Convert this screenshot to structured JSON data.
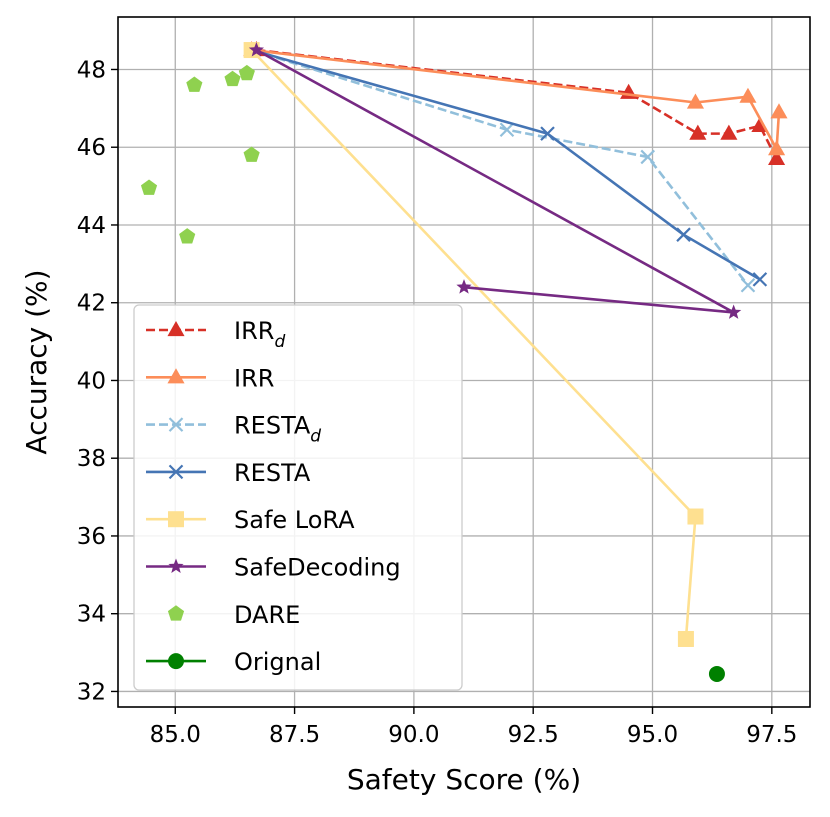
{
  "chart_data": {
    "type": "line",
    "title": "",
    "xlabel": "Safety Score (%)",
    "ylabel": "Accuracy (%)",
    "xlim": [
      83.8,
      98.3
    ],
    "ylim": [
      31.6,
      49.35
    ],
    "xticks": [
      85.0,
      87.5,
      90.0,
      92.5,
      95.0,
      97.5
    ],
    "xtick_labels": [
      "85.0",
      "87.5",
      "90.0",
      "92.5",
      "95.0",
      "97.5"
    ],
    "yticks": [
      32,
      34,
      36,
      38,
      40,
      42,
      44,
      46,
      48
    ],
    "ytick_labels": [
      "32",
      "34",
      "36",
      "38",
      "40",
      "42",
      "44",
      "46",
      "48"
    ],
    "grid": true,
    "legend_position": "lower-left",
    "series": [
      {
        "name": "IRR",
        "name_sub": "d",
        "color": "#d73027",
        "linestyle": "dashed",
        "marker": "triangle",
        "points": [
          [
            86.7,
            48.5
          ],
          [
            94.5,
            47.4
          ],
          [
            95.95,
            46.35
          ],
          [
            96.6,
            46.35
          ],
          [
            97.25,
            46.55
          ],
          [
            97.6,
            45.7
          ]
        ]
      },
      {
        "name": "IRR",
        "name_sub": "",
        "color": "#fc8d59",
        "linestyle": "solid",
        "marker": "triangle",
        "points": [
          [
            86.6,
            48.5
          ],
          [
            95.9,
            47.15
          ],
          [
            97.0,
            47.3
          ],
          [
            97.6,
            45.95
          ],
          [
            97.65,
            46.9
          ]
        ]
      },
      {
        "name": "RESTA",
        "name_sub": "d",
        "color": "#91bfdb",
        "linestyle": "dashed",
        "marker": "x",
        "points": [
          [
            86.6,
            48.5
          ],
          [
            91.95,
            46.45
          ],
          [
            94.9,
            45.75
          ],
          [
            97.0,
            42.45
          ]
        ]
      },
      {
        "name": "RESTA",
        "name_sub": "",
        "color": "#4575b4",
        "linestyle": "solid",
        "marker": "x",
        "points": [
          [
            86.6,
            48.5
          ],
          [
            92.8,
            46.35
          ],
          [
            95.65,
            43.75
          ],
          [
            97.25,
            42.6
          ]
        ]
      },
      {
        "name": "Safe LoRA",
        "name_sub": "",
        "color": "#fee090",
        "linestyle": "solid",
        "marker": "square",
        "points": [
          [
            86.6,
            48.5
          ],
          [
            95.9,
            36.5
          ],
          [
            95.7,
            33.35
          ]
        ]
      },
      {
        "name": "SafeDecoding",
        "name_sub": "",
        "color": "#762a83",
        "linestyle": "solid",
        "marker": "star",
        "points": [
          [
            86.7,
            48.5
          ],
          [
            96.7,
            41.75
          ],
          [
            91.05,
            42.4
          ]
        ]
      },
      {
        "name": "DARE",
        "name_sub": "",
        "color": "#8fd14f",
        "linestyle": "none",
        "marker": "pentagon",
        "points": [
          [
            86.5,
            47.9
          ],
          [
            86.2,
            47.75
          ],
          [
            85.4,
            47.6
          ],
          [
            86.6,
            45.8
          ],
          [
            84.45,
            44.95
          ],
          [
            85.25,
            43.7
          ]
        ]
      },
      {
        "name": "Orignal",
        "name_sub": "",
        "color": "#008000",
        "linestyle": "solid",
        "marker": "circle",
        "points": [
          [
            96.35,
            32.45
          ]
        ]
      }
    ]
  }
}
